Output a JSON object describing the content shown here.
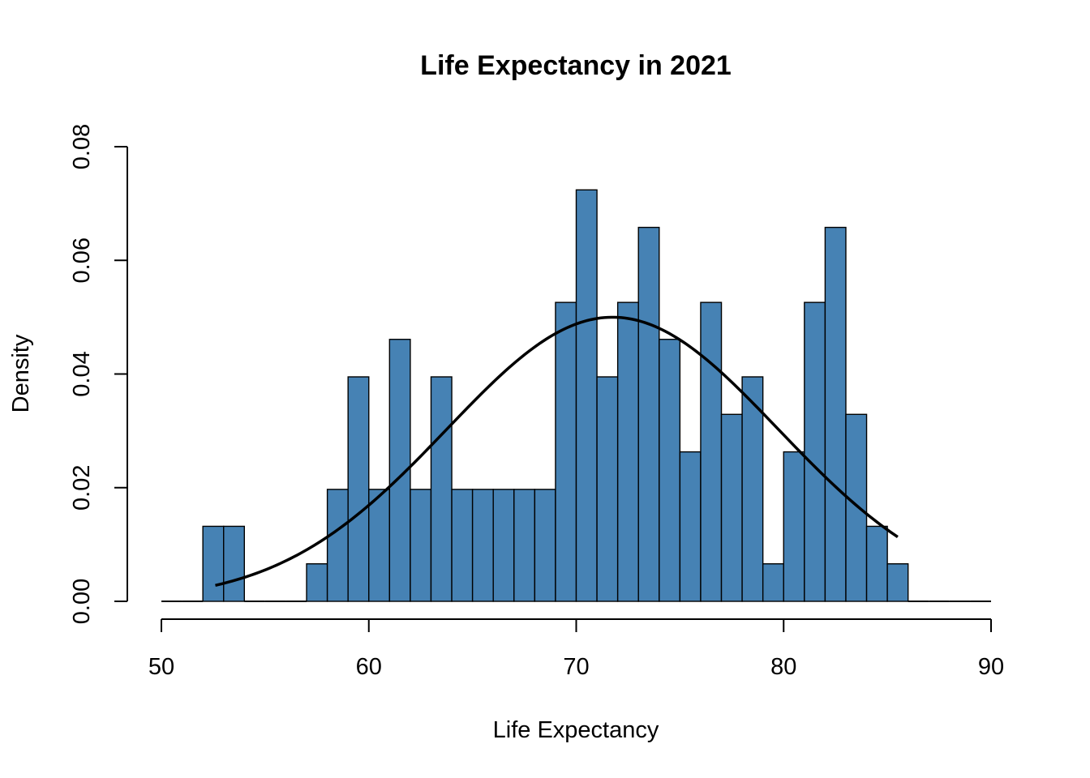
{
  "chart_data": {
    "type": "bar",
    "title": "Life Expectancy in 2021",
    "xlabel": "Life Expectancy",
    "ylabel": "Density",
    "xlim": [
      50,
      90
    ],
    "ylim": [
      0,
      0.08
    ],
    "x_ticks": [
      50,
      60,
      70,
      80,
      90
    ],
    "y_ticks": [
      "0.00",
      "0.02",
      "0.04",
      "0.06",
      "0.08"
    ],
    "grid": false,
    "bar_color": "#4682B4",
    "bins": [
      {
        "start": 50,
        "end": 51,
        "density": 0
      },
      {
        "start": 51,
        "end": 52,
        "density": 0
      },
      {
        "start": 52,
        "end": 53,
        "density": 0.0132
      },
      {
        "start": 53,
        "end": 54,
        "density": 0.0132
      },
      {
        "start": 54,
        "end": 55,
        "density": 0
      },
      {
        "start": 55,
        "end": 56,
        "density": 0
      },
      {
        "start": 56,
        "end": 57,
        "density": 0
      },
      {
        "start": 57,
        "end": 58,
        "density": 0.0066
      },
      {
        "start": 58,
        "end": 59,
        "density": 0.0197
      },
      {
        "start": 59,
        "end": 60,
        "density": 0.0395
      },
      {
        "start": 60,
        "end": 61,
        "density": 0.0197
      },
      {
        "start": 61,
        "end": 62,
        "density": 0.0461
      },
      {
        "start": 62,
        "end": 63,
        "density": 0.0197
      },
      {
        "start": 63,
        "end": 64,
        "density": 0.0395
      },
      {
        "start": 64,
        "end": 65,
        "density": 0.0197
      },
      {
        "start": 65,
        "end": 66,
        "density": 0.0197
      },
      {
        "start": 66,
        "end": 67,
        "density": 0.0197
      },
      {
        "start": 67,
        "end": 68,
        "density": 0.0197
      },
      {
        "start": 68,
        "end": 69,
        "density": 0.0197
      },
      {
        "start": 69,
        "end": 70,
        "density": 0.0526
      },
      {
        "start": 70,
        "end": 71,
        "density": 0.0724
      },
      {
        "start": 71,
        "end": 72,
        "density": 0.0395
      },
      {
        "start": 72,
        "end": 73,
        "density": 0.0526
      },
      {
        "start": 73,
        "end": 74,
        "density": 0.0658
      },
      {
        "start": 74,
        "end": 75,
        "density": 0.0461
      },
      {
        "start": 75,
        "end": 76,
        "density": 0.0263
      },
      {
        "start": 76,
        "end": 77,
        "density": 0.0526
      },
      {
        "start": 77,
        "end": 78,
        "density": 0.0329
      },
      {
        "start": 78,
        "end": 79,
        "density": 0.0395
      },
      {
        "start": 79,
        "end": 80,
        "density": 0.0066
      },
      {
        "start": 80,
        "end": 81,
        "density": 0.0263
      },
      {
        "start": 81,
        "end": 82,
        "density": 0.0526
      },
      {
        "start": 82,
        "end": 83,
        "density": 0.0658
      },
      {
        "start": 83,
        "end": 84,
        "density": 0.0329
      },
      {
        "start": 84,
        "end": 85,
        "density": 0.0132
      },
      {
        "start": 85,
        "end": 86,
        "density": 0.0066
      },
      {
        "start": 86,
        "end": 87,
        "density": 0
      },
      {
        "start": 87,
        "end": 88,
        "density": 0
      },
      {
        "start": 88,
        "end": 89,
        "density": 0
      },
      {
        "start": 89,
        "end": 90,
        "density": 0
      }
    ],
    "density_curve": {
      "type": "normal",
      "mean": 71.75,
      "sd": 7.98,
      "x_range": [
        52.6,
        85.5
      ]
    }
  }
}
